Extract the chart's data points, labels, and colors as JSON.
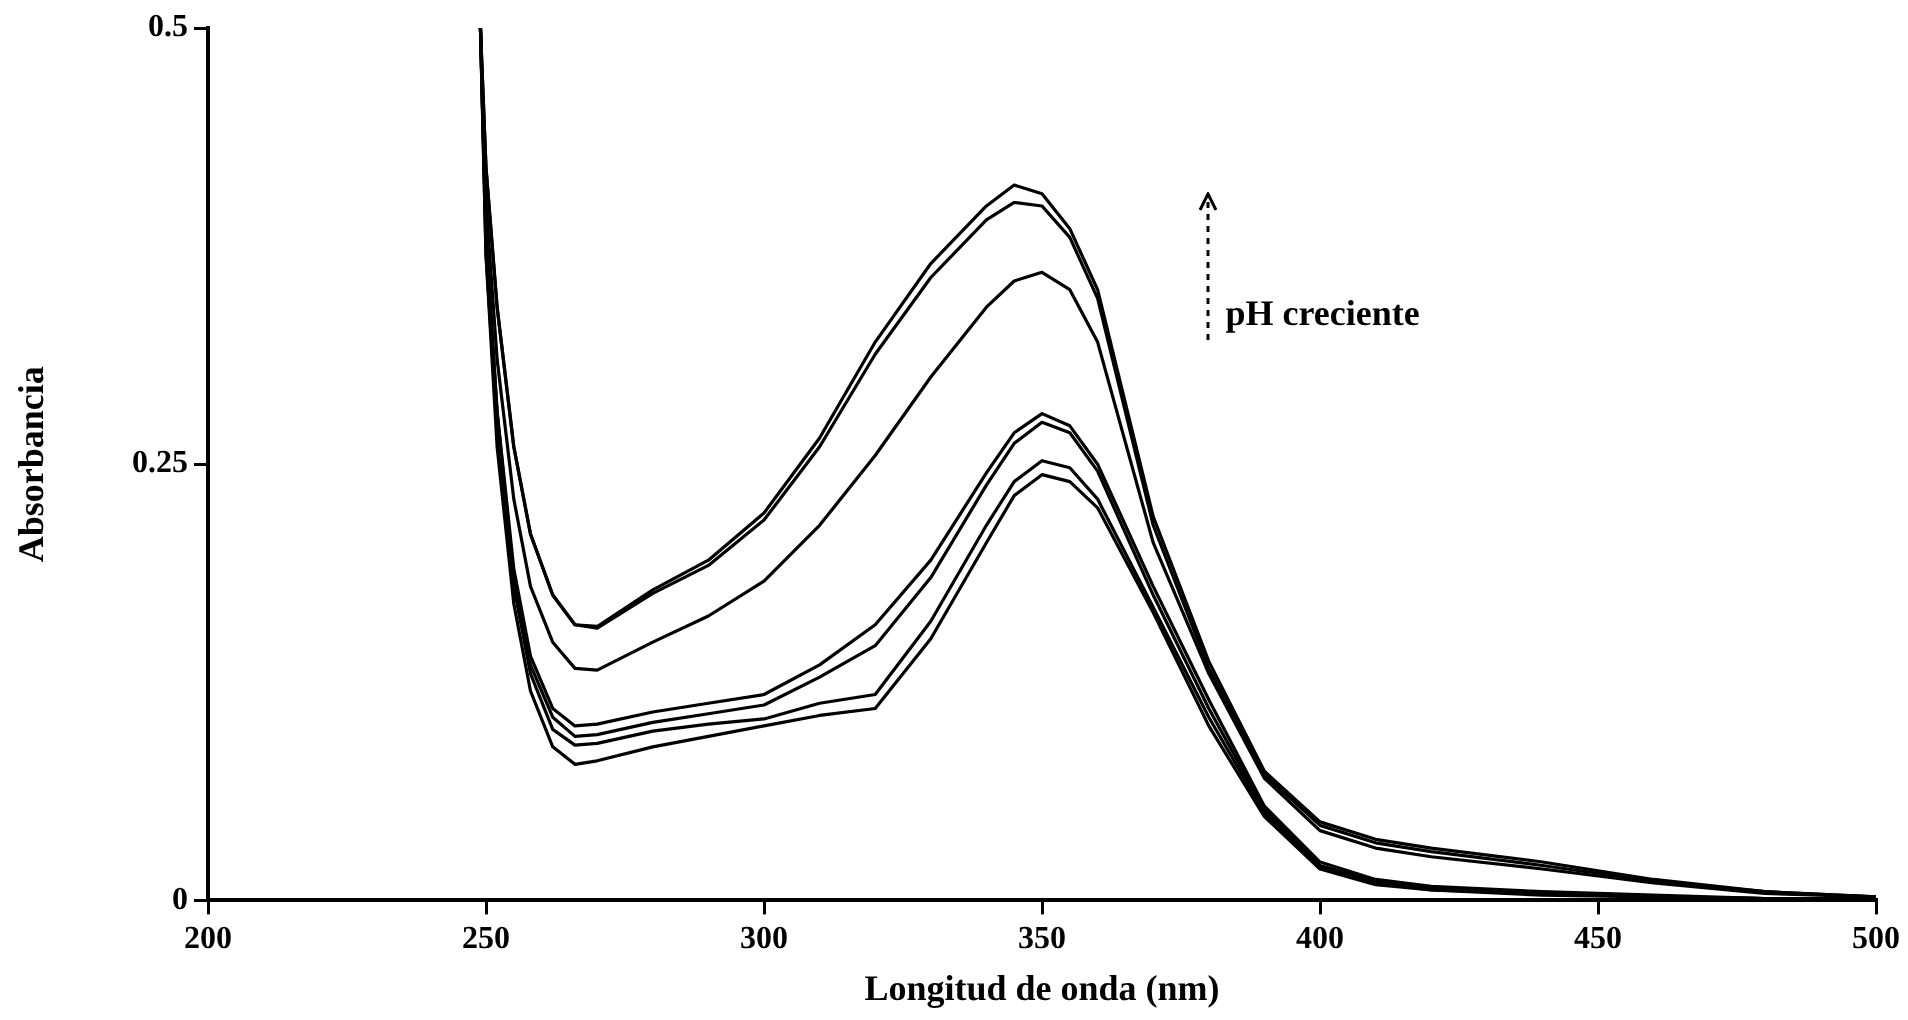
{
  "chart_data": {
    "type": "line",
    "xlabel": "Longitud de onda (nm)",
    "ylabel": "Absorbancia",
    "annotations": [
      "pH creciente"
    ],
    "x": [
      249,
      250,
      252,
      255,
      258,
      262,
      266,
      270,
      280,
      290,
      300,
      310,
      320,
      330,
      340,
      345,
      350,
      355,
      360,
      370,
      380,
      390,
      400,
      410,
      420,
      440,
      460,
      480,
      500
    ],
    "series": [
      {
        "color": "#000000",
        "values": [
          0.5,
          0.42,
          0.34,
          0.26,
          0.21,
          0.175,
          0.158,
          0.157,
          0.178,
          0.195,
          0.222,
          0.265,
          0.32,
          0.365,
          0.398,
          0.41,
          0.405,
          0.385,
          0.35,
          0.22,
          0.137,
          0.074,
          0.045,
          0.035,
          0.03,
          0.022,
          0.012,
          0.005,
          0.002
        ]
      },
      {
        "color": "#000000",
        "values": [
          0.5,
          0.42,
          0.34,
          0.26,
          0.21,
          0.175,
          0.158,
          0.156,
          0.176,
          0.192,
          0.218,
          0.26,
          0.313,
          0.357,
          0.39,
          0.4,
          0.398,
          0.38,
          0.345,
          0.215,
          0.133,
          0.072,
          0.043,
          0.033,
          0.028,
          0.02,
          0.011,
          0.005,
          0.002
        ]
      },
      {
        "color": "#000000",
        "values": [
          0.5,
          0.4,
          0.31,
          0.23,
          0.18,
          0.148,
          0.133,
          0.132,
          0.148,
          0.163,
          0.183,
          0.215,
          0.255,
          0.3,
          0.34,
          0.355,
          0.36,
          0.35,
          0.32,
          0.205,
          0.13,
          0.07,
          0.04,
          0.03,
          0.025,
          0.018,
          0.01,
          0.004,
          0.002
        ]
      },
      {
        "color": "#000000",
        "values": [
          0.5,
          0.38,
          0.28,
          0.19,
          0.14,
          0.11,
          0.1,
          0.101,
          0.108,
          0.113,
          0.118,
          0.135,
          0.158,
          0.195,
          0.245,
          0.268,
          0.279,
          0.272,
          0.25,
          0.18,
          0.115,
          0.054,
          0.022,
          0.012,
          0.008,
          0.005,
          0.003,
          0.001,
          0.001
        ]
      },
      {
        "color": "#000000",
        "values": [
          0.5,
          0.38,
          0.28,
          0.185,
          0.135,
          0.105,
          0.094,
          0.095,
          0.102,
          0.107,
          0.112,
          0.128,
          0.146,
          0.185,
          0.238,
          0.262,
          0.274,
          0.268,
          0.246,
          0.175,
          0.11,
          0.052,
          0.02,
          0.011,
          0.007,
          0.004,
          0.002,
          0.001,
          0.001
        ]
      },
      {
        "color": "#000000",
        "values": [
          0.5,
          0.37,
          0.27,
          0.18,
          0.13,
          0.098,
          0.089,
          0.09,
          0.097,
          0.101,
          0.104,
          0.113,
          0.118,
          0.16,
          0.215,
          0.24,
          0.252,
          0.248,
          0.23,
          0.168,
          0.105,
          0.05,
          0.019,
          0.01,
          0.006,
          0.004,
          0.002,
          0.001,
          0.001
        ]
      },
      {
        "color": "#000000",
        "values": [
          0.5,
          0.37,
          0.26,
          0.17,
          0.12,
          0.088,
          0.078,
          0.08,
          0.088,
          0.094,
          0.1,
          0.106,
          0.11,
          0.15,
          0.205,
          0.232,
          0.244,
          0.24,
          0.225,
          0.165,
          0.1,
          0.048,
          0.018,
          0.009,
          0.006,
          0.003,
          0.002,
          0.001,
          0.001
        ]
      }
    ],
    "xlim": [
      200,
      500
    ],
    "xticks": [
      200,
      250,
      300,
      350,
      400,
      450,
      500
    ],
    "ylim": [
      0,
      0.5
    ],
    "yticks": [
      0,
      0.25,
      0.5
    ],
    "grid": false,
    "legend": false,
    "marker": "none",
    "line_style": "solid"
  }
}
